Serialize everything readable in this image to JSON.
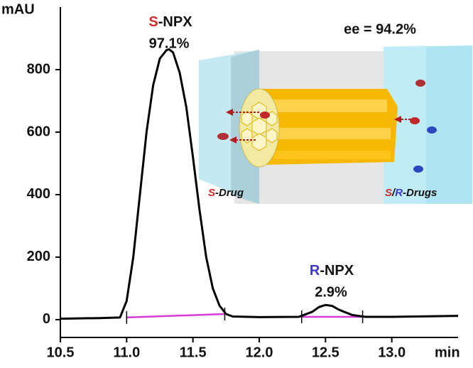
{
  "chart_data": {
    "type": "line",
    "x_label": "min",
    "y_label": "mAU",
    "x": [
      10.5,
      10.8,
      10.95,
      11.0,
      11.05,
      11.1,
      11.15,
      11.2,
      11.25,
      11.3,
      11.32,
      11.35,
      11.4,
      11.45,
      11.5,
      11.55,
      11.6,
      11.65,
      11.7,
      11.75,
      11.8,
      12.0,
      12.3,
      12.4,
      12.45,
      12.5,
      12.55,
      12.6,
      12.7,
      12.8,
      13.0,
      13.5
    ],
    "values": [
      3,
      5,
      7,
      60,
      200,
      400,
      600,
      750,
      835,
      862,
      865,
      855,
      790,
      680,
      520,
      350,
      200,
      100,
      45,
      18,
      10,
      8,
      9,
      25,
      40,
      47,
      44,
      32,
      15,
      9,
      9,
      12
    ],
    "color": "#000000",
    "integration_baselines": [
      {
        "x": [
          11.0,
          11.74
        ],
        "values": [
          7,
          18
        ]
      },
      {
        "x": [
          12.32,
          12.78
        ],
        "values": [
          9,
          9
        ]
      }
    ],
    "baseline_color": "#d63bd6",
    "xlim": [
      10.5,
      13.5
    ],
    "xticks": [
      10.5,
      {
        "value": 11.0,
        "label": "11.0"
      },
      11.5,
      {
        "value": 12.0,
        "label": "12.0"
      },
      12.5,
      {
        "value": 13.0,
        "label": "13.0"
      }
    ],
    "ylim": [
      -57,
      1000
    ],
    "yticks": [
      0,
      200,
      400,
      600,
      800
    ],
    "annotations": {
      "s_peak": {
        "letter": "S",
        "rest": "-NPX",
        "percent": "97.1%"
      },
      "r_peak": {
        "letter": "R",
        "rest": "-NPX",
        "percent": "2.9%"
      },
      "ee": "ee = 94.2%"
    },
    "inset": {
      "left_label": {
        "letter": "S",
        "rest": "-Drug"
      },
      "right_label": {
        "s": "S",
        "slash": "/",
        "r": "R",
        "rest": "-Drugs"
      }
    }
  }
}
